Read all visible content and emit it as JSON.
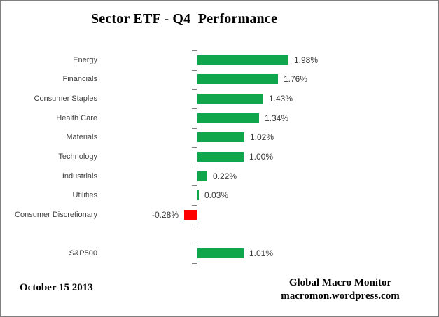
{
  "title": "Sector ETF - Q4  Performance",
  "chart_data": {
    "type": "bar",
    "orientation": "horizontal",
    "title": "Sector ETF - Q4  Performance",
    "categories": [
      "Energy",
      "Financials",
      "Consumer Staples",
      "Health Care",
      "Materials",
      "Technology",
      "Industrials",
      "Utilities",
      "Consumer Discretionary",
      "",
      "S&P500"
    ],
    "values": [
      1.98,
      1.76,
      1.43,
      1.34,
      1.02,
      1.0,
      0.22,
      0.03,
      -0.28,
      null,
      1.01
    ],
    "data_labels": [
      "1.98%",
      "1.76%",
      "1.43%",
      "1.34%",
      "1.02%",
      "1.00%",
      "0.22%",
      "0.03%",
      "-0.28%",
      "",
      "1.01%"
    ],
    "value_unit": "percent",
    "positive_color": "#10A64C",
    "negative_color": "#FF0000",
    "axis_color": "#808080",
    "gridlines": false,
    "legend": "none",
    "xlim": [
      -0.5,
      2.2
    ]
  },
  "footer": {
    "date": "October 15 2013",
    "credit_line1": "Global Macro Monitor",
    "credit_line2": "macromon.wordpress.com"
  }
}
